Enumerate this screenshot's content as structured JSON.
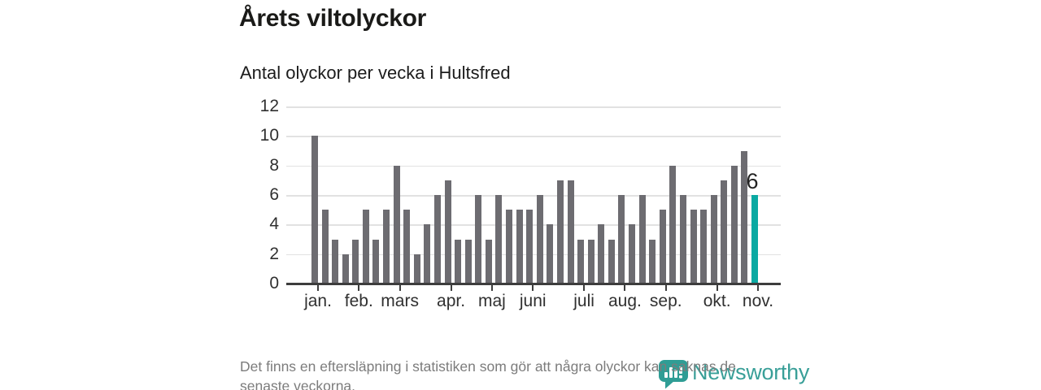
{
  "chart_data": {
    "type": "bar",
    "title": "Årets viltolyckor",
    "subtitle": "Antal olyckor per vecka i Hultsfred",
    "x_unit": "vecka",
    "values": [
      10,
      5,
      3,
      2,
      3,
      5,
      3,
      5,
      8,
      5,
      2,
      4,
      6,
      7,
      3,
      3,
      6,
      3,
      6,
      5,
      5,
      5,
      6,
      4,
      7,
      7,
      3,
      3,
      4,
      3,
      6,
      4,
      6,
      3,
      5,
      8,
      6,
      5,
      5,
      6,
      7,
      8,
      9,
      6
    ],
    "highlight_index": 43,
    "highlight_value_label": "6",
    "y_ticks": [
      0,
      2,
      4,
      6,
      8,
      10,
      12
    ],
    "ylim": [
      0,
      12
    ],
    "grid": true,
    "legend": null,
    "x_tick_labels": [
      {
        "index": 0,
        "label": "jan."
      },
      {
        "index": 4,
        "label": "feb."
      },
      {
        "index": 8,
        "label": "mars"
      },
      {
        "index": 13,
        "label": "apr."
      },
      {
        "index": 17,
        "label": "maj"
      },
      {
        "index": 21,
        "label": "juni"
      },
      {
        "index": 26,
        "label": "juli"
      },
      {
        "index": 30,
        "label": "aug."
      },
      {
        "index": 34,
        "label": "sep."
      },
      {
        "index": 39,
        "label": "okt."
      },
      {
        "index": 43,
        "label": "nov."
      }
    ],
    "colors": {
      "bar": "#6d6c71",
      "highlight": "#0aa9a2",
      "axis": "#3d3d3d",
      "gridline": "#e2e2e2"
    }
  },
  "footer": {
    "line1": "Det finns en eftersläpning i statistiken som gör att några olyckor kan saknas de",
    "line2": "senaste veckorna."
  },
  "logo": {
    "text": "Newsworthy",
    "icon": "newsworthy-bar-chart-pin-icon",
    "color": "#399f98"
  }
}
